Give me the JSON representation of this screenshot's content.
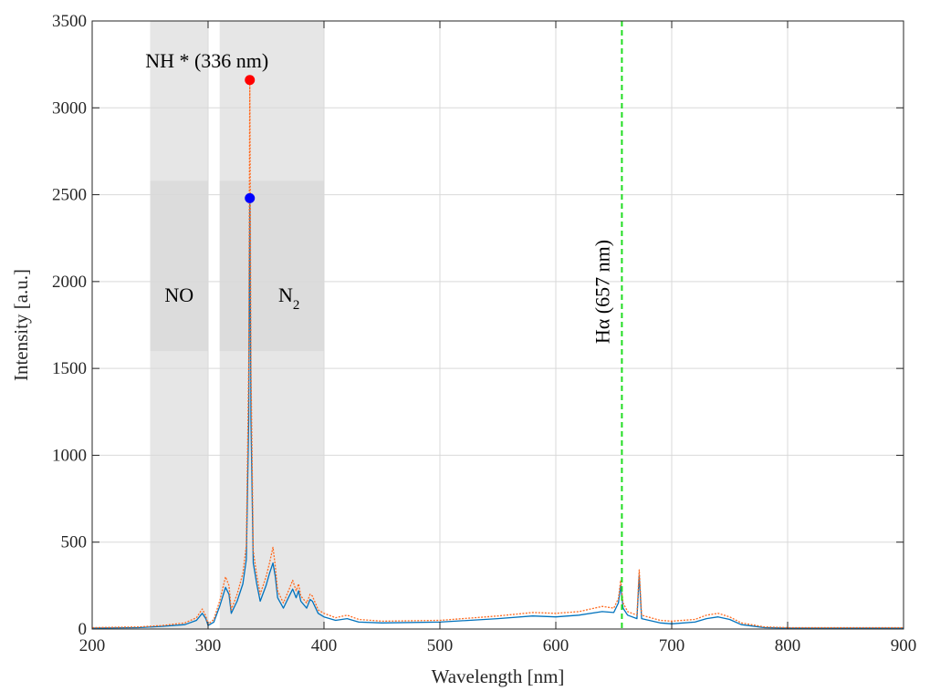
{
  "chart_data": {
    "type": "line",
    "xlabel": "Wavelength [nm]",
    "ylabel": "Intensity [a.u.]",
    "xlim": [
      200,
      900
    ],
    "ylim": [
      0,
      3500
    ],
    "x_ticks": [
      200,
      300,
      400,
      500,
      600,
      700,
      800,
      900
    ],
    "y_ticks": [
      0,
      500,
      1000,
      1500,
      2000,
      2500,
      3000,
      3500
    ],
    "grid": true,
    "shaded_regions": [
      {
        "label": "NO",
        "x": [
          250,
          300
        ],
        "band_y": [
          1600,
          2580
        ]
      },
      {
        "label": "N",
        "label_sub": "2",
        "x": [
          310,
          400
        ],
        "band_y": [
          1600,
          2580
        ]
      }
    ],
    "vertical_line": {
      "x": 657,
      "label": "Hα (657 nm)",
      "color": "#22dd22",
      "style": "dashed"
    },
    "peak_annotation": {
      "label": "NH * (336 nm)",
      "x": 336
    },
    "markers": [
      {
        "x": 336,
        "y": 3160,
        "color": "#ff0000"
      },
      {
        "x": 336,
        "y": 2480,
        "color": "#0000ff"
      }
    ],
    "series": [
      {
        "color": "#0072bd",
        "style": "solid",
        "points": [
          [
            200,
            5
          ],
          [
            240,
            8
          ],
          [
            260,
            15
          ],
          [
            280,
            25
          ],
          [
            290,
            50
          ],
          [
            295,
            90
          ],
          [
            298,
            60
          ],
          [
            300,
            20
          ],
          [
            305,
            40
          ],
          [
            310,
            130
          ],
          [
            315,
            240
          ],
          [
            318,
            200
          ],
          [
            320,
            90
          ],
          [
            325,
            160
          ],
          [
            330,
            260
          ],
          [
            333,
            400
          ],
          [
            335,
            1200
          ],
          [
            336,
            2480
          ],
          [
            337,
            1200
          ],
          [
            339,
            380
          ],
          [
            342,
            260
          ],
          [
            345,
            160
          ],
          [
            350,
            250
          ],
          [
            353,
            320
          ],
          [
            356,
            380
          ],
          [
            358,
            300
          ],
          [
            360,
            180
          ],
          [
            365,
            120
          ],
          [
            370,
            190
          ],
          [
            373,
            230
          ],
          [
            376,
            180
          ],
          [
            378,
            220
          ],
          [
            380,
            160
          ],
          [
            385,
            120
          ],
          [
            388,
            170
          ],
          [
            390,
            160
          ],
          [
            395,
            90
          ],
          [
            400,
            70
          ],
          [
            410,
            50
          ],
          [
            420,
            60
          ],
          [
            430,
            40
          ],
          [
            450,
            35
          ],
          [
            500,
            40
          ],
          [
            550,
            60
          ],
          [
            580,
            75
          ],
          [
            600,
            70
          ],
          [
            620,
            80
          ],
          [
            640,
            100
          ],
          [
            650,
            95
          ],
          [
            654,
            150
          ],
          [
            656,
            250
          ],
          [
            658,
            120
          ],
          [
            662,
            80
          ],
          [
            670,
            60
          ],
          [
            672,
            310
          ],
          [
            674,
            60
          ],
          [
            690,
            35
          ],
          [
            700,
            30
          ],
          [
            720,
            40
          ],
          [
            730,
            60
          ],
          [
            740,
            70
          ],
          [
            750,
            55
          ],
          [
            760,
            25
          ],
          [
            780,
            8
          ],
          [
            800,
            5
          ],
          [
            850,
            5
          ],
          [
            900,
            5
          ]
        ]
      },
      {
        "color": "#ff6a1f",
        "style": "dotted",
        "points": [
          [
            200,
            8
          ],
          [
            240,
            12
          ],
          [
            260,
            20
          ],
          [
            280,
            35
          ],
          [
            290,
            65
          ],
          [
            295,
            115
          ],
          [
            298,
            75
          ],
          [
            300,
            28
          ],
          [
            305,
            55
          ],
          [
            310,
            160
          ],
          [
            315,
            300
          ],
          [
            318,
            250
          ],
          [
            320,
            110
          ],
          [
            325,
            200
          ],
          [
            330,
            320
          ],
          [
            333,
            480
          ],
          [
            335,
            1500
          ],
          [
            336,
            3160
          ],
          [
            337,
            1500
          ],
          [
            339,
            450
          ],
          [
            342,
            310
          ],
          [
            345,
            200
          ],
          [
            350,
            300
          ],
          [
            353,
            380
          ],
          [
            356,
            470
          ],
          [
            358,
            360
          ],
          [
            360,
            220
          ],
          [
            365,
            150
          ],
          [
            370,
            230
          ],
          [
            373,
            280
          ],
          [
            376,
            220
          ],
          [
            378,
            260
          ],
          [
            380,
            190
          ],
          [
            385,
            150
          ],
          [
            388,
            200
          ],
          [
            390,
            190
          ],
          [
            395,
            110
          ],
          [
            400,
            90
          ],
          [
            410,
            65
          ],
          [
            420,
            80
          ],
          [
            430,
            55
          ],
          [
            450,
            45
          ],
          [
            500,
            50
          ],
          [
            550,
            75
          ],
          [
            580,
            95
          ],
          [
            600,
            90
          ],
          [
            620,
            100
          ],
          [
            640,
            130
          ],
          [
            650,
            120
          ],
          [
            654,
            175
          ],
          [
            656,
            280
          ],
          [
            658,
            150
          ],
          [
            662,
            100
          ],
          [
            670,
            80
          ],
          [
            672,
            340
          ],
          [
            674,
            80
          ],
          [
            690,
            50
          ],
          [
            700,
            45
          ],
          [
            720,
            55
          ],
          [
            730,
            80
          ],
          [
            740,
            90
          ],
          [
            750,
            70
          ],
          [
            760,
            35
          ],
          [
            780,
            12
          ],
          [
            800,
            8
          ],
          [
            850,
            8
          ],
          [
            900,
            8
          ]
        ]
      }
    ]
  }
}
